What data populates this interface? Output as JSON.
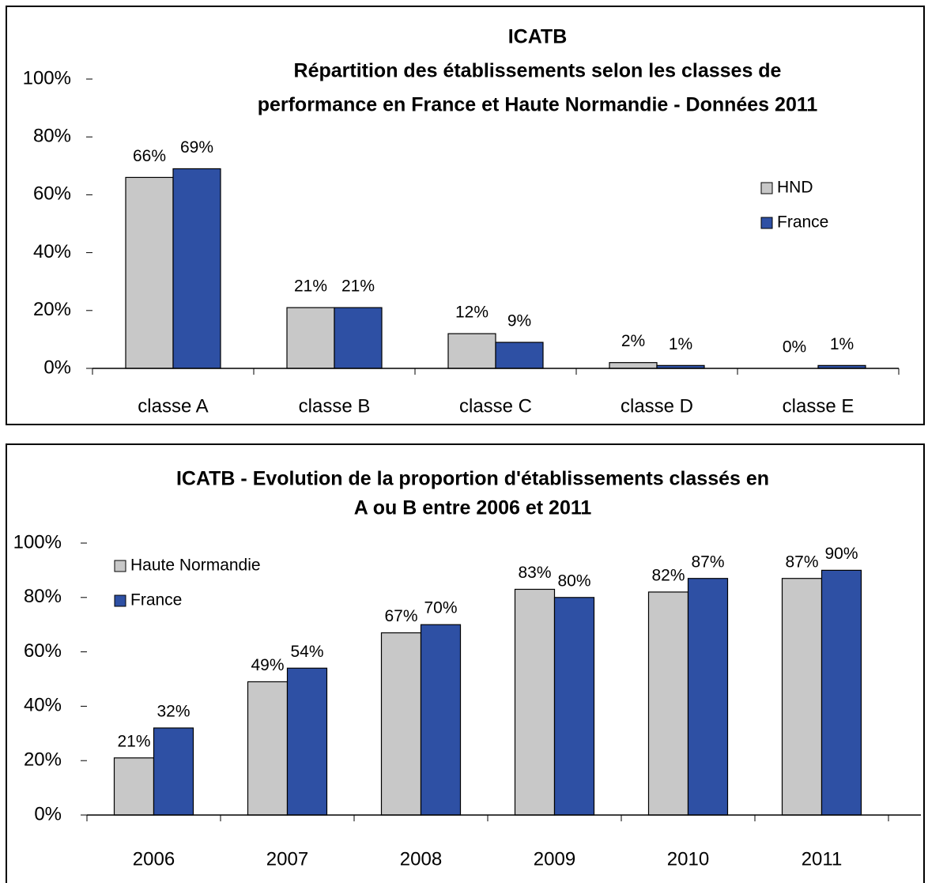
{
  "chart_data": [
    {
      "type": "bar",
      "title": [
        "ICATB",
        "Répartition des établissements selon les classes de",
        "performance en France et Haute Normandie - Données 2011"
      ],
      "categories": [
        "classe A",
        "classe B",
        "classe C",
        "classe D",
        "classe E"
      ],
      "series": [
        {
          "name": "HND",
          "color": "#c8c8c8",
          "values": [
            66,
            21,
            12,
            2,
            0
          ],
          "value_labels": [
            "66%",
            "21%",
            "12%",
            "2%",
            "0%"
          ]
        },
        {
          "name": "France",
          "color": "#2e50a4",
          "values": [
            69,
            21,
            9,
            1,
            1
          ],
          "value_labels": [
            "69%",
            "21%",
            "9%",
            "1%",
            "1%"
          ]
        }
      ],
      "ylim": [
        0,
        100
      ],
      "yticks": [
        {
          "value": 0,
          "label": "0%"
        },
        {
          "value": 20,
          "label": "20%"
        },
        {
          "value": 40,
          "label": "40%"
        },
        {
          "value": 60,
          "label": "60%"
        },
        {
          "value": 80,
          "label": "80%"
        },
        {
          "value": 100,
          "label": "100%"
        }
      ],
      "grid": false,
      "legend": "right"
    },
    {
      "type": "bar",
      "title": [
        "ICATB - Evolution de la proportion d'établissements classés en",
        "A ou B entre 2006 et 2011"
      ],
      "categories": [
        "2006",
        "2007",
        "2008",
        "2009",
        "2010",
        "2011"
      ],
      "series": [
        {
          "name": "Haute Normandie",
          "color": "#c8c8c8",
          "values": [
            21,
            49,
            67,
            83,
            82,
            87
          ],
          "value_labels": [
            "21%",
            "49%",
            "67%",
            "83%",
            "82%",
            "87%"
          ]
        },
        {
          "name": "France",
          "color": "#2e50a4",
          "values": [
            32,
            54,
            70,
            80,
            87,
            90
          ],
          "value_labels": [
            "32%",
            "54%",
            "70%",
            "80%",
            "87%",
            "90%"
          ]
        }
      ],
      "ylim": [
        0,
        100
      ],
      "yticks": [
        {
          "value": 0,
          "label": "0%"
        },
        {
          "value": 20,
          "label": "20%"
        },
        {
          "value": 40,
          "label": "40%"
        },
        {
          "value": 60,
          "label": "60%"
        },
        {
          "value": 80,
          "label": "80%"
        },
        {
          "value": 100,
          "label": "100%"
        }
      ],
      "grid": false,
      "legend": "upper left"
    }
  ]
}
